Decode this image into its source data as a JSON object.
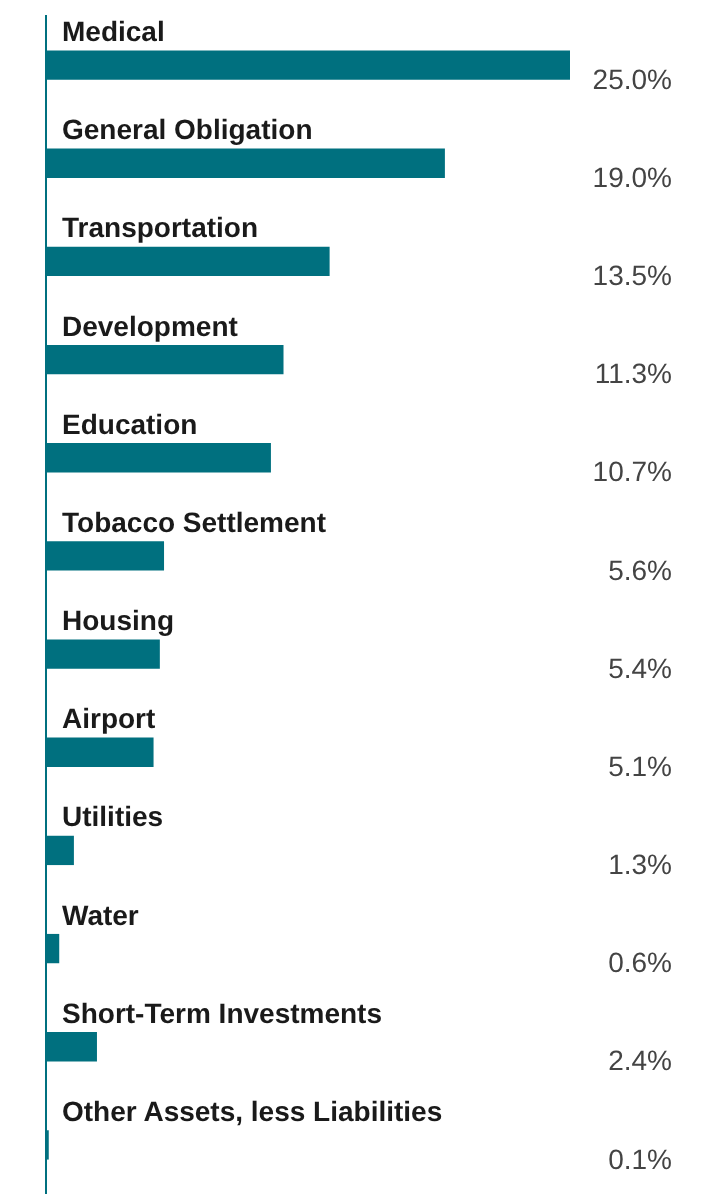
{
  "chart_data": {
    "type": "bar",
    "orientation": "horizontal",
    "categories": [
      "Medical",
      "General Obligation",
      "Transportation",
      "Development",
      "Education",
      "Tobacco Settlement",
      "Housing",
      "Airport",
      "Utilities",
      "Water",
      "Short-Term Investments",
      "Other Assets, less Liabilities"
    ],
    "values": [
      25.0,
      19.0,
      13.5,
      11.3,
      10.7,
      5.6,
      5.4,
      5.1,
      1.3,
      0.6,
      2.4,
      0.1
    ],
    "value_labels": [
      "25.0%",
      "19.0%",
      "13.5%",
      "11.3%",
      "10.7%",
      "5.6%",
      "5.4%",
      "5.1%",
      "1.3%",
      "0.6%",
      "2.4%",
      "0.1%"
    ],
    "color": "#00707f",
    "grid": false,
    "legend": false
  }
}
